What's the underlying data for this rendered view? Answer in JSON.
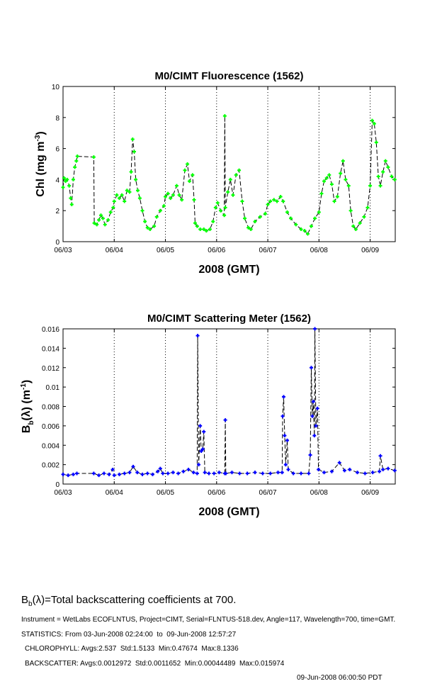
{
  "chart_data": [
    {
      "type": "line",
      "title": "M0/CIMT Fluorescence (1562)",
      "xlabel": "2008 (GMT)",
      "ylabel": "Chl (mg m",
      "ylabel_sup": "-3",
      "ylabel_end": ")",
      "xlim": [
        0,
        6.49
      ],
      "ylim": [
        0,
        10
      ],
      "yticks": [
        0,
        2,
        4,
        6,
        8,
        10
      ],
      "xtick_labels": [
        "06/03",
        "06/04",
        "06/05",
        "06/06",
        "06/07",
        "06/08",
        "06/09"
      ],
      "x_units": "days since 06/03 00:00",
      "grid": "vertical dotted lines at day boundaries",
      "marker_color": "#00ff00",
      "series": [
        {
          "name": "Chl",
          "points": [
            [
              0,
              3.5
            ],
            [
              0.02,
              4.1
            ],
            [
              0.05,
              3.9
            ],
            [
              0.08,
              4.0
            ],
            [
              0.12,
              3.6
            ],
            [
              0.15,
              2.8
            ],
            [
              0.17,
              2.4
            ],
            [
              0.2,
              4.0
            ],
            [
              0.23,
              4.8
            ],
            [
              0.26,
              5.2
            ],
            [
              0.28,
              5.5
            ],
            [
              0.6,
              5.45
            ],
            [
              0.61,
              1.2
            ],
            [
              0.66,
              1.1
            ],
            [
              0.7,
              1.4
            ],
            [
              0.74,
              1.7
            ],
            [
              0.78,
              1.5
            ],
            [
              0.82,
              1.1
            ],
            [
              0.88,
              1.4
            ],
            [
              0.93,
              1.9
            ],
            [
              0.98,
              2.2
            ],
            [
              1.0,
              2.6
            ],
            [
              1.05,
              3.0
            ],
            [
              1.1,
              2.8
            ],
            [
              1.15,
              3.0
            ],
            [
              1.2,
              2.6
            ],
            [
              1.25,
              3.3
            ],
            [
              1.3,
              3.2
            ],
            [
              1.33,
              4.5
            ],
            [
              1.36,
              6.6
            ],
            [
              1.39,
              5.8
            ],
            [
              1.42,
              4.0
            ],
            [
              1.46,
              3.3
            ],
            [
              1.5,
              2.8
            ],
            [
              1.55,
              2.0
            ],
            [
              1.6,
              1.3
            ],
            [
              1.65,
              0.9
            ],
            [
              1.7,
              0.8
            ],
            [
              1.78,
              1.0
            ],
            [
              1.83,
              1.6
            ],
            [
              1.9,
              2.0
            ],
            [
              1.97,
              2.3
            ],
            [
              2.0,
              2.9
            ],
            [
              2.05,
              3.1
            ],
            [
              2.1,
              2.8
            ],
            [
              2.15,
              3.0
            ],
            [
              2.22,
              3.6
            ],
            [
              2.27,
              3.0
            ],
            [
              2.32,
              2.7
            ],
            [
              2.38,
              4.6
            ],
            [
              2.43,
              5.0
            ],
            [
              2.47,
              3.9
            ],
            [
              2.53,
              4.3
            ],
            [
              2.56,
              2.7
            ],
            [
              2.58,
              1.2
            ],
            [
              2.62,
              1.0
            ],
            [
              2.68,
              0.8
            ],
            [
              2.75,
              0.8
            ],
            [
              2.8,
              0.7
            ],
            [
              2.87,
              0.8
            ],
            [
              2.93,
              1.3
            ],
            [
              2.98,
              2.2
            ],
            [
              3.02,
              2.5
            ],
            [
              3.08,
              2.0
            ],
            [
              3.15,
              1.7
            ],
            [
              3.16,
              8.1
            ],
            [
              3.17,
              2.2
            ],
            [
              3.22,
              3.2
            ],
            [
              3.27,
              4.0
            ],
            [
              3.32,
              3.0
            ],
            [
              3.38,
              4.3
            ],
            [
              3.44,
              4.6
            ],
            [
              3.5,
              2.6
            ],
            [
              3.55,
              1.5
            ],
            [
              3.62,
              0.9
            ],
            [
              3.67,
              0.8
            ],
            [
              3.75,
              1.3
            ],
            [
              3.85,
              1.6
            ],
            [
              3.95,
              1.8
            ],
            [
              4.0,
              2.4
            ],
            [
              4.05,
              2.6
            ],
            [
              4.12,
              2.7
            ],
            [
              4.18,
              2.6
            ],
            [
              4.25,
              2.9
            ],
            [
              4.3,
              2.6
            ],
            [
              4.38,
              1.9
            ],
            [
              4.45,
              1.5
            ],
            [
              4.55,
              1.1
            ],
            [
              4.65,
              0.8
            ],
            [
              4.72,
              0.7
            ],
            [
              4.78,
              0.5
            ],
            [
              4.85,
              1.0
            ],
            [
              4.92,
              1.5
            ],
            [
              5.0,
              1.9
            ],
            [
              5.05,
              3.1
            ],
            [
              5.1,
              3.9
            ],
            [
              5.15,
              4.1
            ],
            [
              5.2,
              4.3
            ],
            [
              5.25,
              3.7
            ],
            [
              5.3,
              2.6
            ],
            [
              5.36,
              2.9
            ],
            [
              5.42,
              4.4
            ],
            [
              5.47,
              5.2
            ],
            [
              5.52,
              4.0
            ],
            [
              5.58,
              3.6
            ],
            [
              5.62,
              2.0
            ],
            [
              5.67,
              1.0
            ],
            [
              5.72,
              0.8
            ],
            [
              5.8,
              1.2
            ],
            [
              5.88,
              1.6
            ],
            [
              5.95,
              2.2
            ],
            [
              6.0,
              3.6
            ],
            [
              6.04,
              7.8
            ],
            [
              6.08,
              7.6
            ],
            [
              6.12,
              6.4
            ],
            [
              6.16,
              4.2
            ],
            [
              6.2,
              3.6
            ],
            [
              6.25,
              4.5
            ],
            [
              6.3,
              5.2
            ],
            [
              6.35,
              4.8
            ],
            [
              6.42,
              4.2
            ],
            [
              6.48,
              4.0
            ]
          ]
        }
      ]
    },
    {
      "type": "line",
      "title": "M0/CIMT Scattering Meter (1562)",
      "xlabel": "2008 (GMT)",
      "ylabel": "B",
      "ylabel_sub": "b",
      "ylabel_end": "(λ) (m",
      "ylabel_sup": "-1",
      "ylabel_close": ")",
      "xlim": [
        0,
        6.49
      ],
      "ylim": [
        0,
        0.016
      ],
      "yticks": [
        0,
        0.002,
        0.004,
        0.006,
        0.008,
        0.01,
        0.012,
        0.014,
        0.016
      ],
      "ytick_labels": [
        "0",
        "0.002",
        "0.004",
        "0.006",
        "0.008",
        "0.01",
        "0.012",
        "0.014",
        "0.016"
      ],
      "xtick_labels": [
        "06/03",
        "06/04",
        "06/05",
        "06/06",
        "06/07",
        "06/08",
        "06/09"
      ],
      "x_units": "days since 06/03 00:00",
      "grid": "vertical dotted lines at day boundaries",
      "marker_color": "#0000ff",
      "series": [
        {
          "name": "Bb",
          "points": [
            [
              0,
              0.001
            ],
            [
              0.1,
              0.0009
            ],
            [
              0.2,
              0.001
            ],
            [
              0.27,
              0.0011
            ],
            [
              0.6,
              0.0011
            ],
            [
              0.7,
              0.0009
            ],
            [
              0.8,
              0.0011
            ],
            [
              0.9,
              0.001
            ],
            [
              0.97,
              0.0015
            ],
            [
              1.0,
              0.0009
            ],
            [
              1.1,
              0.001
            ],
            [
              1.2,
              0.0011
            ],
            [
              1.3,
              0.0012
            ],
            [
              1.37,
              0.0018
            ],
            [
              1.45,
              0.0012
            ],
            [
              1.55,
              0.001
            ],
            [
              1.65,
              0.0011
            ],
            [
              1.75,
              0.001
            ],
            [
              1.85,
              0.0013
            ],
            [
              1.9,
              0.0016
            ],
            [
              1.95,
              0.0011
            ],
            [
              2.05,
              0.0011
            ],
            [
              2.15,
              0.0012
            ],
            [
              2.25,
              0.0011
            ],
            [
              2.35,
              0.0013
            ],
            [
              2.45,
              0.0015
            ],
            [
              2.55,
              0.0012
            ],
            [
              2.62,
              0.0011
            ],
            [
              2.63,
              0.0153
            ],
            [
              2.65,
              0.002
            ],
            [
              2.68,
              0.006
            ],
            [
              2.7,
              0.0034
            ],
            [
              2.73,
              0.0036
            ],
            [
              2.75,
              0.0054
            ],
            [
              2.77,
              0.0012
            ],
            [
              2.85,
              0.0011
            ],
            [
              2.95,
              0.0011
            ],
            [
              3.05,
              0.0012
            ],
            [
              3.16,
              0.0011
            ],
            [
              3.17,
              0.0066
            ],
            [
              3.18,
              0.0011
            ],
            [
              3.3,
              0.0012
            ],
            [
              3.45,
              0.0011
            ],
            [
              3.6,
              0.0011
            ],
            [
              3.75,
              0.0012
            ],
            [
              3.9,
              0.0011
            ],
            [
              4.05,
              0.0011
            ],
            [
              4.2,
              0.0012
            ],
            [
              4.28,
              0.0012
            ],
            [
              4.29,
              0.007
            ],
            [
              4.31,
              0.009
            ],
            [
              4.33,
              0.005
            ],
            [
              4.35,
              0.002
            ],
            [
              4.38,
              0.0045
            ],
            [
              4.4,
              0.0015
            ],
            [
              4.5,
              0.0011
            ],
            [
              4.65,
              0.0011
            ],
            [
              4.8,
              0.0011
            ],
            [
              4.83,
              0.003
            ],
            [
              4.85,
              0.012
            ],
            [
              4.87,
              0.007
            ],
            [
              4.89,
              0.0085
            ],
            [
              4.91,
              0.005
            ],
            [
              4.92,
              0.016
            ],
            [
              4.94,
              0.006
            ],
            [
              4.97,
              0.0078
            ],
            [
              4.99,
              0.0015
            ],
            [
              5.1,
              0.0012
            ],
            [
              5.25,
              0.0013
            ],
            [
              5.4,
              0.0022
            ],
            [
              5.5,
              0.0014
            ],
            [
              5.6,
              0.0015
            ],
            [
              5.75,
              0.0012
            ],
            [
              5.9,
              0.0011
            ],
            [
              6.05,
              0.0012
            ],
            [
              6.18,
              0.0013
            ],
            [
              6.2,
              0.0029
            ],
            [
              6.25,
              0.0015
            ],
            [
              6.35,
              0.0016
            ],
            [
              6.48,
              0.0014
            ]
          ]
        }
      ]
    }
  ],
  "footer": {
    "caption_b": "B",
    "caption_sub": "b",
    "caption_rest": "(λ)=Total backscattering coefficients at 700.",
    "instrument": "Instrument = WetLabs ECOFLNTUS, Project=CIMT, Serial=FLNTUS-518.dev, Angle=117, Wavelength=700, time=GMT.",
    "statistics": "STATISTICS: From 03-Jun-2008 02:24:00  to  09-Jun-2008 12:57:27",
    "chlorophyll": "CHLOROPHYLL: Avgs:2.537  Std:1.5133  Min:0.47674  Max:8.1336",
    "backscatter": "BACKSCATTER: Avgs:0.0012972  Std:0.0011652  Min:0.00044489  Max:0.015974",
    "timestamp": "09-Jun-2008 06:00:50 PDT"
  }
}
